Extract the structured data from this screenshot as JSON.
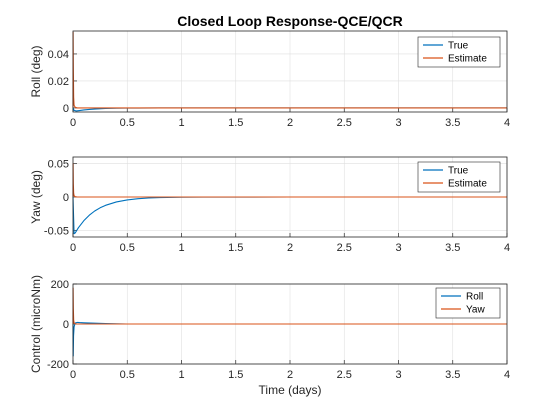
{
  "chart_data": [
    {
      "type": "line",
      "title": "Closed Loop Response-QCE/QCR",
      "xlabel": "",
      "ylabel": "Roll (deg)",
      "xlim": [
        0,
        4
      ],
      "ylim": [
        -0.003,
        0.057
      ],
      "xticks": [
        "0",
        "0.5",
        "1",
        "1.5",
        "2",
        "2.5",
        "3",
        "3.5",
        "4"
      ],
      "yticks": [
        "0",
        "0.02",
        "0.04"
      ],
      "ytick_values": [
        0,
        0.02,
        0.04
      ],
      "grid": true,
      "legend_position": "top-right",
      "series": [
        {
          "name": "True",
          "color": "#0072BD",
          "x": [
            0,
            0.01,
            0.03,
            0.06,
            0.1,
            0.15,
            0.2,
            0.3,
            0.4,
            0.5,
            0.6,
            0.8,
            1,
            2,
            3,
            4
          ],
          "y": [
            0,
            -0.0018,
            -0.0022,
            -0.0019,
            -0.0015,
            -0.0011,
            -0.0008,
            -0.0004,
            -0.0002,
            -0.0001,
            -5e-05,
            0,
            0,
            0,
            0,
            0
          ]
        },
        {
          "name": "Estimate",
          "color": "#D95319",
          "x": [
            0,
            0.001,
            0.003,
            0.006,
            0.01,
            0.02,
            0.04,
            0.1,
            0.5,
            1,
            2,
            3,
            4
          ],
          "y": [
            0,
            0.056,
            0.03,
            0.008,
            0.002,
            0.0005,
            0,
            0,
            0,
            0,
            0,
            0,
            0
          ]
        }
      ]
    },
    {
      "type": "line",
      "title": "",
      "xlabel": "",
      "ylabel": "Yaw  (deg)",
      "xlim": [
        0,
        4
      ],
      "ylim": [
        -0.06,
        0.06
      ],
      "xticks": [
        "0",
        "0.5",
        "1",
        "1.5",
        "2",
        "2.5",
        "3",
        "3.5",
        "4"
      ],
      "yticks": [
        "-0.05",
        "0",
        "0.05"
      ],
      "ytick_values": [
        -0.05,
        0,
        0.05
      ],
      "grid": true,
      "legend_position": "top-right",
      "series": [
        {
          "name": "True",
          "color": "#0072BD",
          "x": [
            0,
            0.01,
            0.02,
            0.05,
            0.1,
            0.15,
            0.2,
            0.25,
            0.3,
            0.4,
            0.5,
            0.6,
            0.7,
            0.8,
            1,
            1.2,
            2,
            3,
            4
          ],
          "y": [
            0,
            -0.055,
            -0.054,
            -0.046,
            -0.0355,
            -0.0273,
            -0.021,
            -0.0162,
            -0.0125,
            -0.0074,
            -0.0044,
            -0.0026,
            -0.0015,
            -0.0009,
            -0.0003,
            -0.0001,
            0,
            0,
            0
          ]
        },
        {
          "name": "Estimate",
          "color": "#D95319",
          "x": [
            0,
            0.001,
            0.003,
            0.006,
            0.01,
            0.02,
            0.04,
            0.1,
            0.5,
            1,
            2,
            3,
            4
          ],
          "y": [
            0,
            0.05,
            0.02,
            0.006,
            0.002,
            0.0005,
            0,
            0,
            0,
            0,
            0,
            0,
            0
          ]
        }
      ]
    },
    {
      "type": "line",
      "title": "",
      "xlabel": "Time (days)",
      "ylabel": "Control (microNm)",
      "xlim": [
        0,
        4
      ],
      "ylim": [
        -200,
        200
      ],
      "xticks": [
        "0",
        "0.5",
        "1",
        "1.5",
        "2",
        "2.5",
        "3",
        "3.5",
        "4"
      ],
      "yticks": [
        "-200",
        "0",
        "200"
      ],
      "ytick_values": [
        -200,
        0,
        200
      ],
      "grid": true,
      "legend_position": "top-right",
      "series": [
        {
          "name": "Roll",
          "color": "#0072BD",
          "x": [
            0,
            0.002,
            0.005,
            0.01,
            0.02,
            0.04,
            0.06,
            0.1,
            0.2,
            0.3,
            0.4,
            0.5,
            1,
            2,
            3,
            4
          ],
          "y": [
            0,
            -160,
            -60,
            -15,
            5,
            8,
            7,
            6,
            4,
            2,
            1,
            0,
            0,
            0,
            0,
            0
          ]
        },
        {
          "name": "Yaw",
          "color": "#D95319",
          "x": [
            0,
            0.001,
            0.003,
            0.006,
            0.01,
            0.02,
            0.04,
            0.1,
            0.5,
            1,
            2,
            3,
            4
          ],
          "y": [
            0,
            180,
            80,
            20,
            5,
            1,
            0,
            0,
            0,
            0,
            0,
            0,
            0
          ]
        }
      ]
    }
  ]
}
